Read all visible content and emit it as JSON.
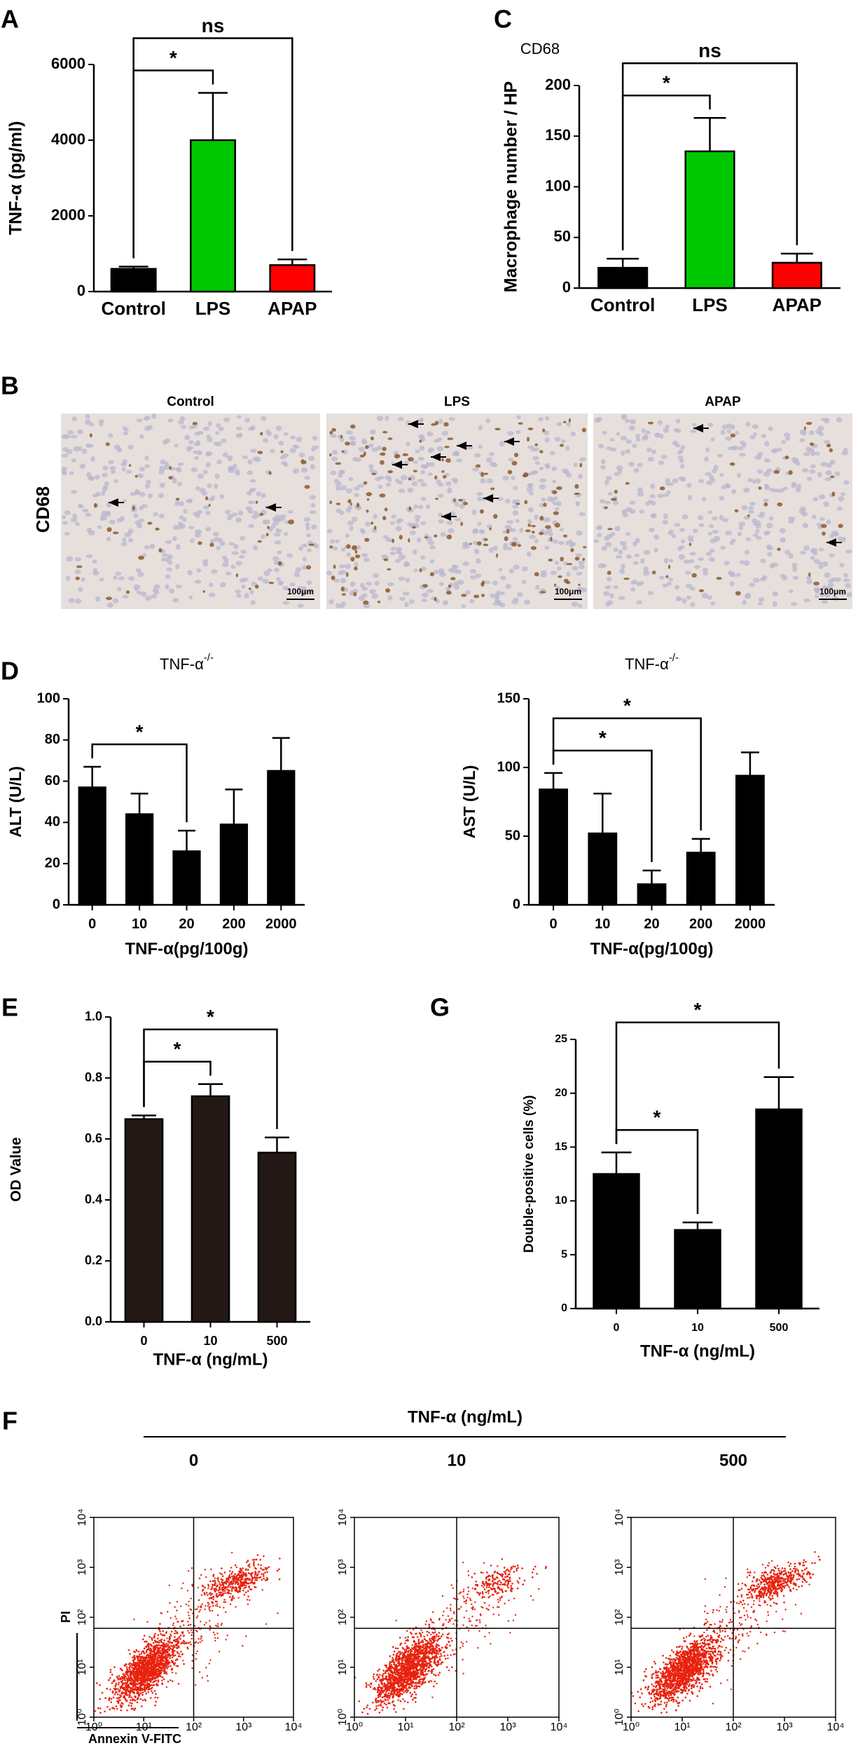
{
  "chart_data": [
    {
      "type": "bar",
      "panel": "A",
      "ylabel": "TNF-α (pg/ml)",
      "categories": [
        "Control",
        "LPS",
        "APAP"
      ],
      "values": [
        600,
        4000,
        700
      ],
      "errors": [
        60,
        1250,
        150
      ],
      "colors": [
        "#000000",
        "#00c800",
        "#ff0000"
      ],
      "ylim": [
        0,
        6000
      ],
      "yticks": [
        0,
        2000,
        4000,
        6000
      ],
      "annotations": [
        {
          "text": "*",
          "between": [
            "Control",
            "LPS"
          ]
        },
        {
          "text": "ns",
          "between": [
            "Control",
            "APAP"
          ]
        }
      ]
    },
    {
      "type": "bar",
      "panel": "C",
      "label": "CD68",
      "ylabel": "Macrophage number / HP",
      "categories": [
        "Control",
        "LPS",
        "APAP"
      ],
      "values": [
        20,
        135,
        25
      ],
      "errors": [
        9,
        33,
        9
      ],
      "colors": [
        "#000000",
        "#00c800",
        "#ff0000"
      ],
      "ylim": [
        0,
        200
      ],
      "yticks": [
        0,
        50,
        100,
        150,
        200
      ],
      "annotations": [
        {
          "text": "*",
          "between": [
            "Control",
            "LPS"
          ]
        },
        {
          "text": "ns",
          "between": [
            "Control",
            "APAP"
          ]
        }
      ]
    },
    {
      "type": "bar",
      "panel": "D",
      "title": "TNF-α",
      "title_superscript": "-/-",
      "ylabel": "ALT (U/L)",
      "xlabel": "TNF-α(pg/100g)",
      "categories": [
        "0",
        "10",
        "20",
        "200",
        "2000"
      ],
      "values": [
        57,
        44,
        26,
        39,
        65
      ],
      "errors": [
        10,
        10,
        10,
        17,
        16
      ],
      "color": "#000000",
      "ylim": [
        0,
        100
      ],
      "yticks": [
        0,
        20,
        40,
        60,
        80,
        100
      ],
      "annotations": [
        {
          "text": "*",
          "between": [
            "0",
            "20"
          ]
        }
      ]
    },
    {
      "type": "bar",
      "title": "TNF-α",
      "title_superscript": "-/-",
      "ylabel": "AST (U/L)",
      "xlabel": "TNF-α(pg/100g)",
      "categories": [
        "0",
        "10",
        "20",
        "200",
        "2000"
      ],
      "values": [
        84,
        52,
        15,
        38,
        94
      ],
      "errors": [
        12,
        29,
        10,
        10,
        17
      ],
      "color": "#000000",
      "ylim": [
        0,
        150
      ],
      "yticks": [
        0,
        50,
        100,
        150
      ],
      "annotations": [
        {
          "text": "*",
          "between": [
            "0",
            "20"
          ]
        },
        {
          "text": "*",
          "between": [
            "0",
            "200"
          ]
        }
      ]
    },
    {
      "type": "bar",
      "panel": "E",
      "ylabel": "OD Value",
      "xlabel": "TNF-α (ng/mL)",
      "categories": [
        "0",
        "10",
        "500"
      ],
      "values": [
        0.665,
        0.74,
        0.555
      ],
      "errors": [
        0.012,
        0.04,
        0.05
      ],
      "color": "#231815",
      "ylim": [
        0,
        1
      ],
      "yticks": [
        {
          "value": 0,
          "label": "0.0"
        },
        0.2,
        0.4,
        0.6,
        0.8,
        {
          "value": 1,
          "label": "1.0"
        }
      ],
      "annotations": [
        {
          "text": "*",
          "between": [
            "0",
            "10"
          ]
        },
        {
          "text": "*",
          "between": [
            "0",
            "500"
          ]
        }
      ]
    },
    {
      "type": "bar",
      "panel": "G",
      "ylabel": "Double-positive cells (%)",
      "xlabel": "TNF-α (ng/mL)",
      "categories": [
        "0",
        "10",
        "500"
      ],
      "values": [
        12.5,
        7.3,
        18.5
      ],
      "errors": [
        2,
        0.7,
        3
      ],
      "color": "#000000",
      "ylim": [
        0,
        25
      ],
      "yticks": [
        0,
        5,
        10,
        15,
        20,
        25
      ],
      "annotations": [
        {
          "text": "*",
          "between": [
            "0",
            "10"
          ]
        },
        {
          "text": "*",
          "between": [
            "0",
            "500"
          ]
        }
      ]
    },
    {
      "type": "scatter",
      "panel": "F",
      "header": "TNF-α (ng/mL)",
      "title": "0",
      "ylabel": "PI",
      "xlabel": "Annexin V-FITC",
      "log_scale": true,
      "color": "#e8220f",
      "xlim": [
        1,
        10000
      ],
      "ylim": [
        1,
        10000
      ],
      "xticks": [
        {
          "value": 1,
          "label": "10⁰"
        },
        {
          "value": 10,
          "label": "10¹"
        },
        {
          "value": 100,
          "label": "10²"
        },
        {
          "value": 1000,
          "label": "10³"
        },
        {
          "value": 10000,
          "label": "10⁴"
        }
      ],
      "yticks": [
        {
          "value": 1,
          "label": "10⁰"
        },
        {
          "value": 10,
          "label": "10¹"
        },
        {
          "value": 100,
          "label": "10²"
        },
        {
          "value": 1000,
          "label": "10³"
        },
        {
          "value": 10000,
          "label": "10⁴"
        }
      ],
      "gates": {
        "x": 100,
        "y": 60
      }
    },
    {
      "type": "scatter",
      "title": "10",
      "log_scale": true,
      "color": "#e8220f",
      "xlim": [
        1,
        10000
      ],
      "ylim": [
        1,
        10000
      ],
      "xticks": [
        {
          "value": 1,
          "label": "10⁰"
        },
        {
          "value": 10,
          "label": "10¹"
        },
        {
          "value": 100,
          "label": "10²"
        },
        {
          "value": 1000,
          "label": "10³"
        },
        {
          "value": 10000,
          "label": "10⁴"
        }
      ],
      "yticks": [
        {
          "value": 1,
          "label": "10⁰"
        },
        {
          "value": 10,
          "label": "10¹"
        },
        {
          "value": 100,
          "label": "10²"
        },
        {
          "value": 1000,
          "label": "10³"
        },
        {
          "value": 10000,
          "label": "10⁴"
        }
      ],
      "gates": {
        "x": 100,
        "y": 60
      }
    },
    {
      "type": "scatter",
      "title": "500",
      "log_scale": true,
      "color": "#e8220f",
      "xlim": [
        1,
        10000
      ],
      "ylim": [
        1,
        10000
      ],
      "xticks": [
        {
          "value": 1,
          "label": "10⁰"
        },
        {
          "value": 10,
          "label": "10¹"
        },
        {
          "value": 100,
          "label": "10²"
        },
        {
          "value": 1000,
          "label": "10³"
        },
        {
          "value": 10000,
          "label": "10⁴"
        }
      ],
      "yticks": [
        {
          "value": 1,
          "label": "10⁰"
        },
        {
          "value": 10,
          "label": "10¹"
        },
        {
          "value": 100,
          "label": "10²"
        },
        {
          "value": 1000,
          "label": "10³"
        },
        {
          "value": 10000,
          "label": "10⁴"
        }
      ],
      "gates": {
        "x": 100,
        "y": 60
      }
    }
  ],
  "micrograph": {
    "panel": "B",
    "row_label": "CD68",
    "columns": [
      "Control",
      "LPS",
      "APAP"
    ],
    "scale_bar": "100μm"
  }
}
